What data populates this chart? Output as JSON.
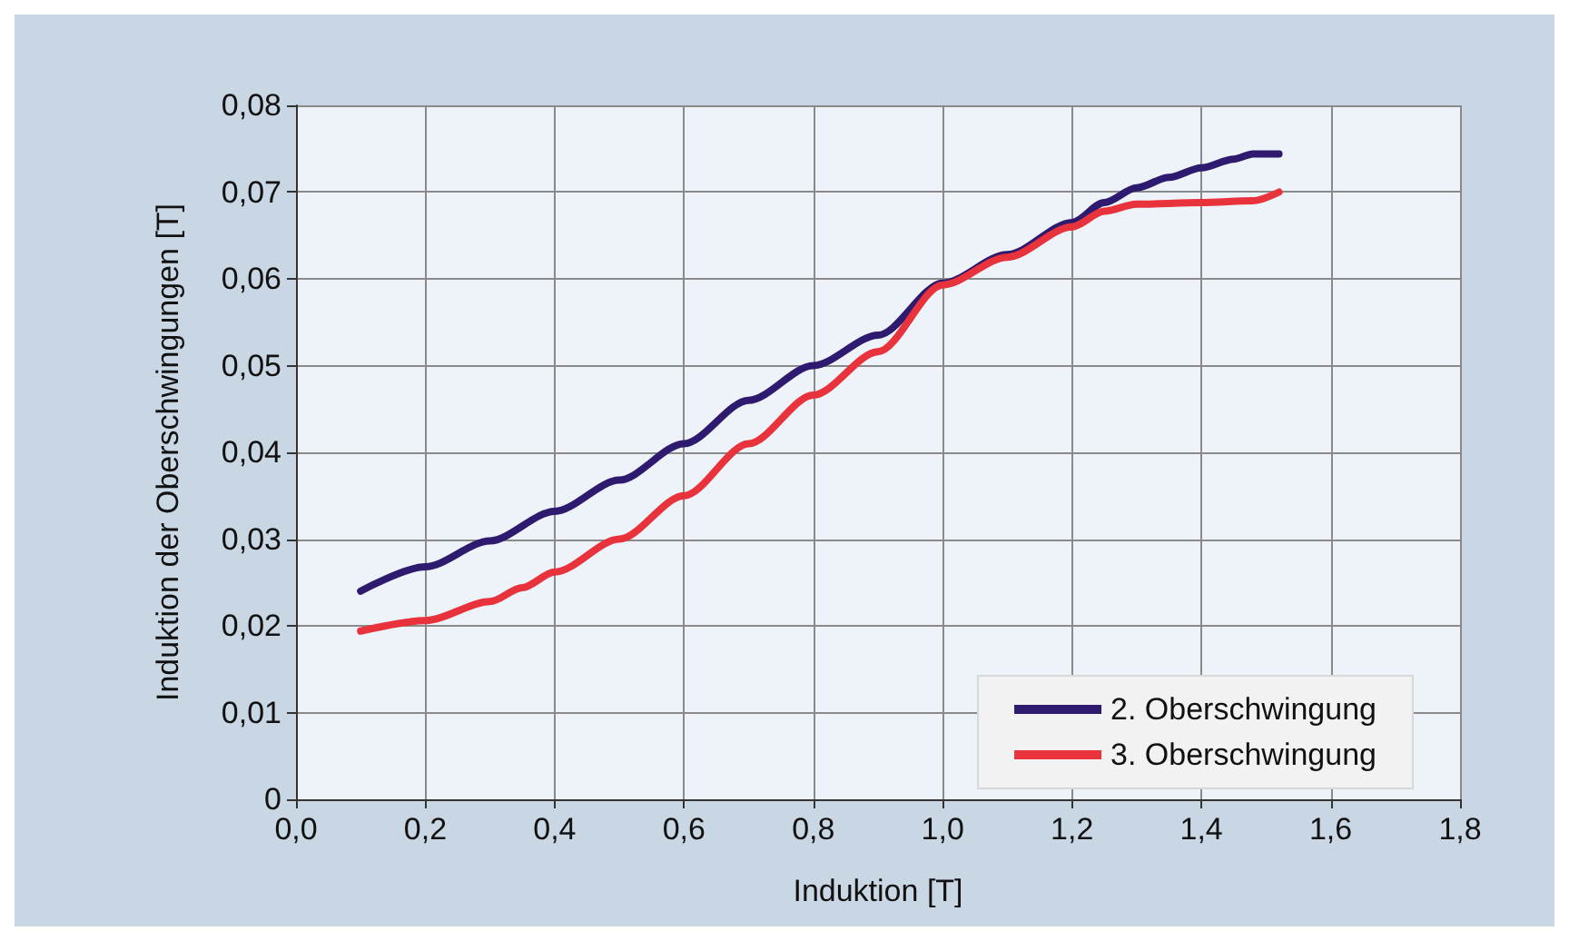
{
  "chart_data": {
    "type": "line",
    "xlabel": "Induktion [T]",
    "ylabel": "Induktion der Oberschwingungen [T]",
    "xlim": [
      0,
      1.8
    ],
    "xticks": [
      {
        "value": 0,
        "label": "0,0"
      },
      {
        "value": 0.2,
        "label": "0,2"
      },
      {
        "value": 0.4,
        "label": "0,4"
      },
      {
        "value": 0.6,
        "label": "0,6"
      },
      {
        "value": 0.8,
        "label": "0,8"
      },
      {
        "value": 1,
        "label": "1,0"
      },
      {
        "value": 1.2,
        "label": "1,2"
      },
      {
        "value": 1.4,
        "label": "1,4"
      },
      {
        "value": 1.6,
        "label": "1,6"
      },
      {
        "value": 1.8,
        "label": "1,8"
      }
    ],
    "ylim": [
      0,
      0.08
    ],
    "yticks": [
      0,
      {
        "value": 0.01,
        "label": "0,01"
      },
      {
        "value": 0.02,
        "label": "0,02"
      },
      {
        "value": 0.03,
        "label": "0,03"
      },
      {
        "value": 0.04,
        "label": "0,04"
      },
      {
        "value": 0.05,
        "label": "0,05"
      },
      {
        "value": 0.06,
        "label": "0,06"
      },
      {
        "value": 0.07,
        "label": "0,07"
      },
      {
        "value": 0.08,
        "label": "0,08"
      }
    ],
    "grid": true,
    "legend": "bottom right",
    "marker": "none",
    "line_style": "solid",
    "series": [
      {
        "name": "2. Oberschwingung",
        "color": "#2e1a6e",
        "x": [
          0.1,
          0.2,
          0.3,
          0.4,
          0.5,
          0.6,
          0.7,
          0.8,
          0.9,
          1.0,
          1.1,
          1.2,
          1.25,
          1.3,
          1.35,
          1.4,
          1.45,
          1.48,
          1.52
        ],
        "values": [
          0.024,
          0.0268,
          0.0298,
          0.0332,
          0.0368,
          0.041,
          0.046,
          0.05,
          0.0535,
          0.0595,
          0.0628,
          0.0665,
          0.0688,
          0.0705,
          0.0717,
          0.0728,
          0.0738,
          0.0744,
          0.0744
        ]
      },
      {
        "name": "3. Oberschwingung",
        "color": "#e8323c",
        "x": [
          0.1,
          0.2,
          0.3,
          0.35,
          0.4,
          0.5,
          0.6,
          0.7,
          0.8,
          0.9,
          1.0,
          1.1,
          1.2,
          1.25,
          1.3,
          1.4,
          1.48,
          1.52
        ],
        "values": [
          0.0194,
          0.0206,
          0.0228,
          0.0244,
          0.0262,
          0.03,
          0.035,
          0.041,
          0.0466,
          0.0516,
          0.0593,
          0.0625,
          0.066,
          0.0678,
          0.0686,
          0.0688,
          0.069,
          0.07
        ]
      }
    ]
  }
}
